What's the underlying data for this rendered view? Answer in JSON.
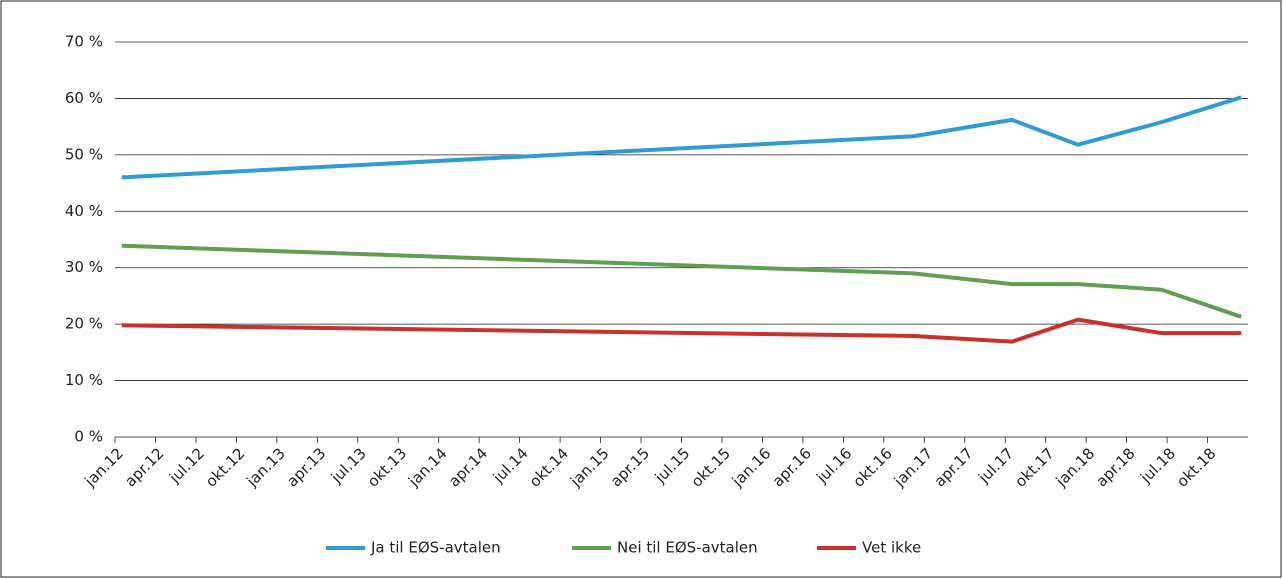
{
  "chart_data": {
    "type": "line",
    "x": [
      0.5,
      59.2,
      66.5,
      71.4,
      77.6,
      83.5
    ],
    "series": [
      {
        "name": "Ja til EØS-avtalen",
        "color": "#2e9bd6",
        "values": [
          46,
          53.3,
          56.2,
          51.8,
          55.8,
          60.2
        ]
      },
      {
        "name": "Nei til EØS-avtalen",
        "color": "#5f9e53",
        "values": [
          33.9,
          29.0,
          27.1,
          27.1,
          26.1,
          21.3
        ]
      },
      {
        "name": "Vet ikke",
        "color": "#c8322d",
        "values": [
          19.8,
          17.9,
          16.9,
          20.8,
          18.4,
          18.4
        ]
      }
    ],
    "xlim": [
      0,
      84
    ],
    "xticks": [
      {
        "value": 0,
        "label": "jan.12"
      },
      {
        "value": 3,
        "label": "apr.12"
      },
      {
        "value": 6,
        "label": "jul.12"
      },
      {
        "value": 9,
        "label": "okt.12"
      },
      {
        "value": 12,
        "label": "jan.13"
      },
      {
        "value": 15,
        "label": "apr.13"
      },
      {
        "value": 18,
        "label": "jul.13"
      },
      {
        "value": 21,
        "label": "okt.13"
      },
      {
        "value": 24,
        "label": "jan.14"
      },
      {
        "value": 27,
        "label": "apr.14"
      },
      {
        "value": 30,
        "label": "jul.14"
      },
      {
        "value": 33,
        "label": "okt.14"
      },
      {
        "value": 36,
        "label": "jan.15"
      },
      {
        "value": 39,
        "label": "apr.15"
      },
      {
        "value": 42,
        "label": "jul.15"
      },
      {
        "value": 45,
        "label": "okt.15"
      },
      {
        "value": 48,
        "label": "jan.16"
      },
      {
        "value": 51,
        "label": "apr.16"
      },
      {
        "value": 54,
        "label": "jul.16"
      },
      {
        "value": 57,
        "label": "okt.16"
      },
      {
        "value": 60,
        "label": "jan.17"
      },
      {
        "value": 63,
        "label": "apr.17"
      },
      {
        "value": 66,
        "label": "jul.17"
      },
      {
        "value": 69,
        "label": "okt.17"
      },
      {
        "value": 72,
        "label": "jan.18"
      },
      {
        "value": 75,
        "label": "apr.18"
      },
      {
        "value": 78,
        "label": "jul.18"
      },
      {
        "value": 81,
        "label": "okt.18"
      }
    ],
    "ylim": [
      0,
      70
    ],
    "yticks": [
      {
        "value": 0,
        "label": "0 %"
      },
      {
        "value": 10,
        "label": "10 %"
      },
      {
        "value": 20,
        "label": "20 %"
      },
      {
        "value": 30,
        "label": "30 %"
      },
      {
        "value": 40,
        "label": "40 %"
      },
      {
        "value": 50,
        "label": "50 %"
      },
      {
        "value": 60,
        "label": "60 %"
      },
      {
        "value": 70,
        "label": "70 %"
      }
    ],
    "grid": true,
    "legend": "bottom"
  }
}
